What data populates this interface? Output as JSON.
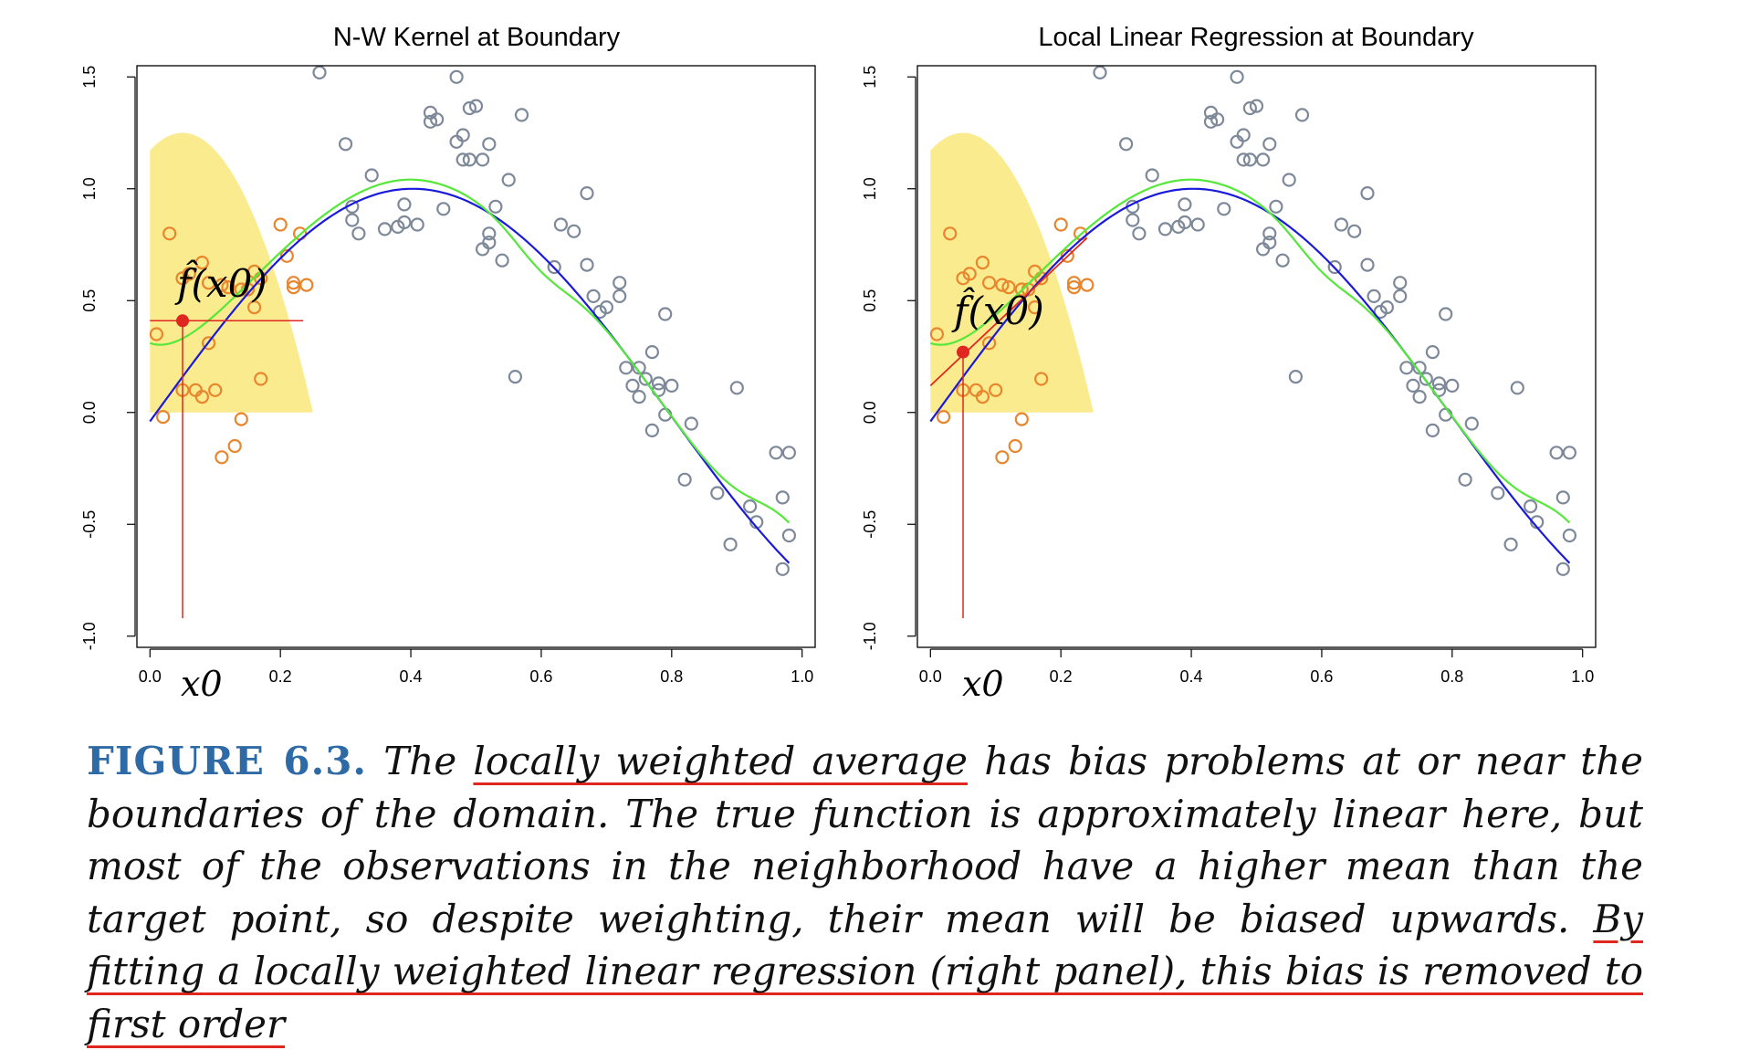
{
  "figure": {
    "panels": [
      {
        "title": "N-W Kernel at Boundary",
        "fit_label": "f̂(x0)",
        "x0_label": "x0"
      },
      {
        "title": "Local Linear Regression at Boundary",
        "fit_label": "f̂(x0)",
        "x0_label": "x0"
      }
    ]
  },
  "caption": {
    "label": "FIGURE 6.3.",
    "t1": " The ",
    "u1": "locally weighted average",
    "t2": " has bias problems at or near the boundaries of the domain. The true function is approximately linear here, but most of the observations in the neighborhood have a higher mean than the target point, so despite weighting, their mean will be biased upwards. ",
    "u2": "By fitting a locally weighted linear regression (right panel), this bias is removed to first order"
  },
  "colors": {
    "kernel_fill": "#fbeb8f",
    "near_points": "#e8852d",
    "far_points": "#7d8899",
    "true_curve": "#1a1adb",
    "fit_curve": "#55e83a",
    "target": "#e0271f",
    "caption_label": "#2e6aa6"
  },
  "chart_data": [
    {
      "type": "scatter",
      "title": "N-W Kernel at Boundary",
      "xlim": [
        -0.02,
        1.02
      ],
      "ylim": [
        -1.05,
        1.55
      ],
      "xticks": [
        "0.0",
        "0.2",
        "0.4",
        "0.6",
        "0.8",
        "1.0"
      ],
      "yticks": [
        "-1.0",
        "-0.5",
        "0.0",
        "0.5",
        "1.0",
        "1.5"
      ],
      "x0": 0.05,
      "fhat_x0": 0.41,
      "fit_segment": null
    },
    {
      "type": "scatter",
      "title": "Local Linear Regression at Boundary",
      "xlim": [
        -0.02,
        1.02
      ],
      "ylim": [
        -1.05,
        1.55
      ],
      "xticks": [
        "0.0",
        "0.2",
        "0.4",
        "0.6",
        "0.8",
        "1.0"
      ],
      "yticks": [
        "-1.0",
        "-0.5",
        "0.0",
        "0.5",
        "1.0",
        "1.5"
      ],
      "x0": 0.05,
      "fhat_x0": 0.27,
      "fit_segment": [
        [
          0.0,
          0.12
        ],
        [
          0.24,
          0.78
        ]
      ]
    }
  ],
  "points": {
    "x": [
      0.01,
      0.02,
      0.03,
      0.05,
      0.05,
      0.06,
      0.07,
      0.08,
      0.08,
      0.09,
      0.09,
      0.1,
      0.11,
      0.11,
      0.12,
      0.13,
      0.14,
      0.14,
      0.15,
      0.16,
      0.16,
      0.17,
      0.17,
      0.2,
      0.21,
      0.22,
      0.22,
      0.23,
      0.24,
      0.26,
      0.3,
      0.31,
      0.31,
      0.32,
      0.34,
      0.36,
      0.38,
      0.39,
      0.39,
      0.41,
      0.43,
      0.43,
      0.44,
      0.45,
      0.47,
      0.47,
      0.48,
      0.48,
      0.49,
      0.49,
      0.5,
      0.51,
      0.51,
      0.52,
      0.52,
      0.52,
      0.53,
      0.54,
      0.55,
      0.56,
      0.57,
      0.62,
      0.63,
      0.65,
      0.67,
      0.67,
      0.68,
      0.69,
      0.7,
      0.72,
      0.72,
      0.73,
      0.74,
      0.75,
      0.75,
      0.76,
      0.77,
      0.77,
      0.78,
      0.78,
      0.79,
      0.79,
      0.8,
      0.82,
      0.83,
      0.87,
      0.89,
      0.9,
      0.92,
      0.93,
      0.96,
      0.97,
      0.97,
      0.98,
      0.98
    ],
    "y": [
      0.35,
      -0.02,
      0.8,
      0.6,
      0.1,
      0.62,
      0.1,
      0.67,
      0.07,
      0.58,
      0.31,
      0.1,
      0.57,
      -0.2,
      0.56,
      -0.15,
      0.55,
      -0.03,
      0.55,
      0.63,
      0.47,
      0.6,
      0.15,
      0.84,
      0.7,
      0.56,
      0.58,
      0.8,
      0.57,
      1.52,
      1.2,
      0.92,
      0.86,
      0.8,
      1.06,
      0.82,
      0.83,
      0.93,
      0.85,
      0.84,
      1.3,
      1.34,
      1.31,
      0.91,
      1.21,
      1.5,
      1.13,
      1.24,
      1.36,
      1.13,
      1.37,
      1.13,
      0.73,
      0.76,
      1.2,
      0.8,
      0.92,
      0.68,
      1.04,
      0.16,
      1.33,
      0.65,
      0.84,
      0.81,
      0.98,
      0.66,
      0.52,
      0.45,
      0.47,
      0.58,
      0.52,
      0.2,
      0.12,
      0.2,
      0.07,
      0.15,
      -0.08,
      0.27,
      0.13,
      0.1,
      0.44,
      -0.01,
      0.12,
      -0.3,
      -0.05,
      -0.36,
      -0.59,
      0.11,
      -0.42,
      -0.49,
      -0.18,
      -0.38,
      -0.7,
      -0.55,
      -0.18
    ]
  }
}
